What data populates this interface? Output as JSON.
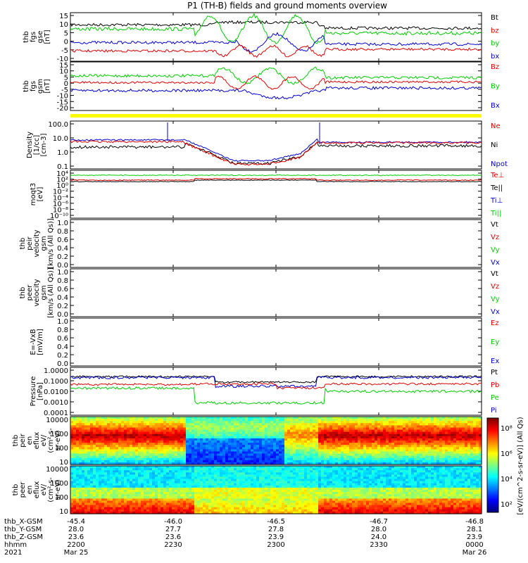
{
  "title": "P1 (TH-B) fields and ground moments overview",
  "colors": {
    "black": "#000000",
    "red": "#e00000",
    "green": "#00cc00",
    "blue": "#0000cc",
    "yellow": "#ffff00"
  },
  "panels": [
    {
      "id": "p1",
      "ylabel": [
        "thb",
        "fgs",
        "gse",
        "[nT]"
      ],
      "ticks": [
        "15",
        "10",
        "5",
        "0",
        "-5",
        "-10"
      ],
      "legend": [
        {
          "t": "Bt",
          "c": "black"
        },
        {
          "t": "bz",
          "c": "red"
        },
        {
          "t": "by",
          "c": "green"
        },
        {
          "t": "bx",
          "c": "blue"
        }
      ]
    },
    {
      "id": "p2",
      "ylabel": [
        "thb",
        "fgs",
        "gsm",
        "[nT]"
      ],
      "ticks": [
        "15",
        "10",
        "5",
        "0",
        "-5",
        "-10",
        "-15",
        "-20"
      ],
      "legend": [
        {
          "t": "Bz",
          "c": "red"
        },
        {
          "t": "By",
          "c": "green"
        },
        {
          "t": "Bx",
          "c": "blue"
        }
      ]
    },
    {
      "id": "p3",
      "ylabel": [
        "Density",
        "[1/cc]",
        "[cm-3]"
      ],
      "ticks": [
        "100.0",
        "10.0",
        "1.0",
        "0.1"
      ],
      "legend": [
        {
          "t": "Ne",
          "c": "red"
        },
        {
          "t": "Ni",
          "c": "black"
        },
        {
          "t": "Npot",
          "c": "blue"
        }
      ]
    },
    {
      "id": "p4",
      "ylabel": [
        "moqt3",
        "[eV]"
      ],
      "ticks": [
        "10⁴",
        "10²",
        "10⁰",
        "10⁻²",
        "10⁻⁴",
        "10⁻⁶",
        "10⁻⁸",
        "10⁻¹⁰"
      ],
      "legend": [
        {
          "t": "Te⊥",
          "c": "red"
        },
        {
          "t": "Te||",
          "c": "black"
        },
        {
          "t": "Ti⊥",
          "c": "blue"
        },
        {
          "t": "Ti||",
          "c": "green"
        }
      ]
    },
    {
      "id": "p5",
      "ylabel": [
        "thb",
        "peir",
        "velocity",
        "gsm",
        "[km/s (All Qs)]"
      ],
      "ticks": [
        "1.0",
        "0.8",
        "0.6",
        "0.4",
        "0.2",
        "0.0"
      ],
      "legend": [
        {
          "t": "Vt",
          "c": "black"
        },
        {
          "t": "Vz",
          "c": "red"
        },
        {
          "t": "Vy",
          "c": "green"
        },
        {
          "t": "Vx",
          "c": "blue"
        }
      ]
    },
    {
      "id": "p6",
      "ylabel": [
        "thb",
        "peer",
        "velocity",
        "gsm",
        "[km/s (All Qs)]"
      ],
      "ticks": [
        "1.0",
        "0.8",
        "0.6",
        "0.4",
        "0.2",
        "0.0"
      ],
      "legend": [
        {
          "t": "Vt",
          "c": "black"
        },
        {
          "t": "Vz",
          "c": "red"
        },
        {
          "t": "Vy",
          "c": "green"
        },
        {
          "t": "Vx",
          "c": "blue"
        }
      ]
    },
    {
      "id": "p7",
      "ylabel": [
        "E=-VxB",
        "[mV/m]"
      ],
      "ticks": [
        "1.0",
        "0.8",
        "0.6",
        "0.4",
        "0.2",
        "0.0"
      ],
      "legend": [
        {
          "t": "Ez",
          "c": "red"
        },
        {
          "t": "Ey",
          "c": "green"
        },
        {
          "t": "Ex",
          "c": "blue"
        }
      ]
    },
    {
      "id": "p8",
      "ylabel": [
        "Pressure",
        "[nPa]"
      ],
      "ticks": [
        "1.0000",
        "0.1000",
        "0.0100",
        "0.0010",
        "0.0001"
      ],
      "legend": [
        {
          "t": "Pt",
          "c": "black"
        },
        {
          "t": "Pb",
          "c": "red"
        },
        {
          "t": "Pe",
          "c": "green"
        },
        {
          "t": "Pi",
          "c": "blue"
        }
      ]
    },
    {
      "id": "p9",
      "ylabel": [
        "thb",
        "peir",
        "en",
        "eflux",
        "eV/",
        "(cm²-s-",
        "sr-eV)"
      ],
      "ticks": [
        "10000",
        "1000",
        "100",
        "10"
      ]
    },
    {
      "id": "p10",
      "ylabel": [
        "thb",
        "peer",
        "en",
        "eflux",
        "eV/",
        "(cm²-s-",
        "sr-eV)"
      ],
      "ticks": [
        "10000",
        "1000",
        "100",
        "10"
      ]
    }
  ],
  "colorbar": {
    "ticks": [
      "10⁸",
      "10⁶",
      "10⁴",
      "10²"
    ],
    "label": "[eV/(cm^2-s-sr-eV)] (All Qs)"
  },
  "time_axis": {
    "row_labels": [
      "thb_X-GSM",
      "thb_Y-GSM",
      "thb_Z-GSM",
      "hhmm",
      "2021"
    ],
    "columns": [
      {
        "x": "-45.4",
        "y": "28.0",
        "z": "23.6",
        "hhmm": "2200",
        "date": "Mar 25"
      },
      {
        "x": "-46.0",
        "y": "27.7",
        "z": "23.6",
        "hhmm": "2230",
        "date": ""
      },
      {
        "x": "-46.5",
        "y": "27.8",
        "z": "23.9",
        "hhmm": "2300",
        "date": ""
      },
      {
        "x": "-46.7",
        "y": "28.0",
        "z": "24.0",
        "hhmm": "2330",
        "date": ""
      },
      {
        "x": "-46.8",
        "y": "28.1",
        "z": "23.9",
        "hhmm": "0000",
        "date": "Mar 26"
      }
    ]
  },
  "chart_data": [
    {
      "type": "line",
      "title": "P1 (TH-B) fields and ground moments overview",
      "ylabel": "thb fgs gse [nT]",
      "ylim": [
        -15,
        15
      ],
      "x": [
        "2200",
        "2230",
        "2300",
        "2330",
        "0000"
      ],
      "series": [
        {
          "name": "Bt",
          "values": [
            8,
            10,
            12,
            6,
            7
          ]
        },
        {
          "name": "bz",
          "values": [
            -7,
            -6,
            -5,
            -6,
            -5
          ]
        },
        {
          "name": "by",
          "values": [
            5,
            8,
            -2,
            2,
            3
          ]
        },
        {
          "name": "bx",
          "values": [
            -2,
            0,
            3,
            -1,
            -1
          ]
        }
      ]
    },
    {
      "type": "line",
      "ylabel": "thb fgs gsm [nT]",
      "ylim": [
        -20,
        15
      ],
      "x": [
        "2200",
        "2230",
        "2300",
        "2330",
        "0000"
      ],
      "series": [
        {
          "name": "Bz",
          "values": [
            0,
            -2,
            0,
            1,
            1
          ]
        },
        {
          "name": "By",
          "values": [
            5,
            5,
            1,
            4,
            4
          ]
        },
        {
          "name": "Bx",
          "values": [
            -7,
            -8,
            -12,
            -4,
            -4
          ]
        }
      ]
    },
    {
      "type": "line",
      "ylabel": "Density [1/cc] [cm-3]",
      "scale": "log",
      "ylim": [
        0.1,
        100
      ],
      "x": [
        "2200",
        "2230",
        "2300",
        "2330",
        "0000"
      ],
      "series": [
        {
          "name": "Ne",
          "values": [
            4,
            0.3,
            0.2,
            5,
            5
          ]
        },
        {
          "name": "Ni",
          "values": [
            2,
            0.3,
            0.2,
            2,
            1.8
          ]
        },
        {
          "name": "Npot",
          "values": [
            5,
            0.3,
            0.2,
            6,
            5
          ]
        }
      ]
    },
    {
      "type": "line",
      "ylabel": "moqt3 [eV]",
      "scale": "log",
      "x": [
        "2200",
        "2230",
        "2300",
        "2330",
        "0000"
      ],
      "series": [
        {
          "name": "Te⊥",
          "values": [
            60,
            80,
            90,
            70,
            60
          ]
        },
        {
          "name": "Ti||",
          "values": [
            4000,
            4200,
            4300,
            4100,
            4000
          ]
        }
      ]
    },
    {
      "type": "line",
      "ylabel": "Pressure [nPa]",
      "scale": "log",
      "ylim": [
        0.0001,
        1
      ],
      "x": [
        "2200",
        "2230",
        "2300",
        "2330",
        "0000"
      ],
      "series": [
        {
          "name": "Pt",
          "values": [
            0.3,
            0.1,
            0.15,
            0.3,
            0.25
          ]
        },
        {
          "name": "Pb",
          "values": [
            0.05,
            0.04,
            0.02,
            0.03,
            0.04
          ]
        },
        {
          "name": "Pe",
          "values": [
            0.02,
            0.002,
            0.0005,
            0.01,
            0.008
          ]
        },
        {
          "name": "Pi",
          "values": [
            0.2,
            0.05,
            0.02,
            0.2,
            0.2
          ]
        }
      ]
    }
  ]
}
